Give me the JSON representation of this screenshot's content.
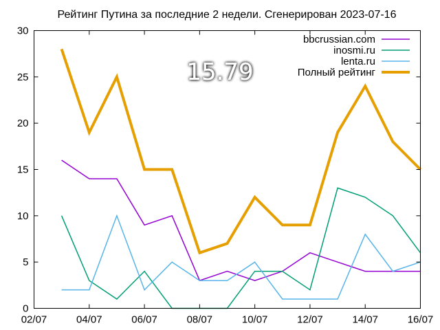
{
  "chart_data": {
    "type": "line",
    "title": "Рейтинг Путина за последние 2 недели. Сгенерирован 2023-07-16",
    "highlight_value": "15.79",
    "x_ticks": [
      "02/07",
      "04/07",
      "06/07",
      "08/07",
      "10/07",
      "12/07",
      "14/07",
      "16/07"
    ],
    "xlim": [
      "2023-07-02",
      "2023-07-16"
    ],
    "ylim": [
      0,
      30
    ],
    "y_ticks": [
      0,
      5,
      10,
      15,
      20,
      25,
      30
    ],
    "grid": false,
    "legend_position": "top-right",
    "x": [
      "2023-07-03",
      "2023-07-04",
      "2023-07-05",
      "2023-07-06",
      "2023-07-07",
      "2023-07-08",
      "2023-07-09",
      "2023-07-10",
      "2023-07-11",
      "2023-07-12",
      "2023-07-13",
      "2023-07-14",
      "2023-07-15",
      "2023-07-16"
    ],
    "series": [
      {
        "name": "bbcrussian.com",
        "color": "#9400d3",
        "line_width": 1.5,
        "values": [
          16,
          14,
          14,
          9,
          10,
          3,
          4,
          3,
          4,
          6,
          5,
          4,
          4,
          4
        ]
      },
      {
        "name": "inosmi.ru",
        "color": "#009e73",
        "line_width": 1.5,
        "values": [
          10,
          3,
          1,
          4,
          0,
          0,
          0,
          4,
          4,
          2,
          13,
          12,
          10,
          6
        ]
      },
      {
        "name": "lenta.ru",
        "color": "#56b4e9",
        "line_width": 1.5,
        "values": [
          2,
          2,
          10,
          2,
          5,
          3,
          3,
          5,
          1,
          1,
          1,
          8,
          4,
          5
        ]
      },
      {
        "name": "Полный рейтинг",
        "color": "#e69f00",
        "line_width": 4,
        "values": [
          28,
          19,
          25,
          15,
          15,
          6,
          7,
          12,
          9,
          9,
          19,
          24,
          18,
          15
        ]
      }
    ]
  }
}
